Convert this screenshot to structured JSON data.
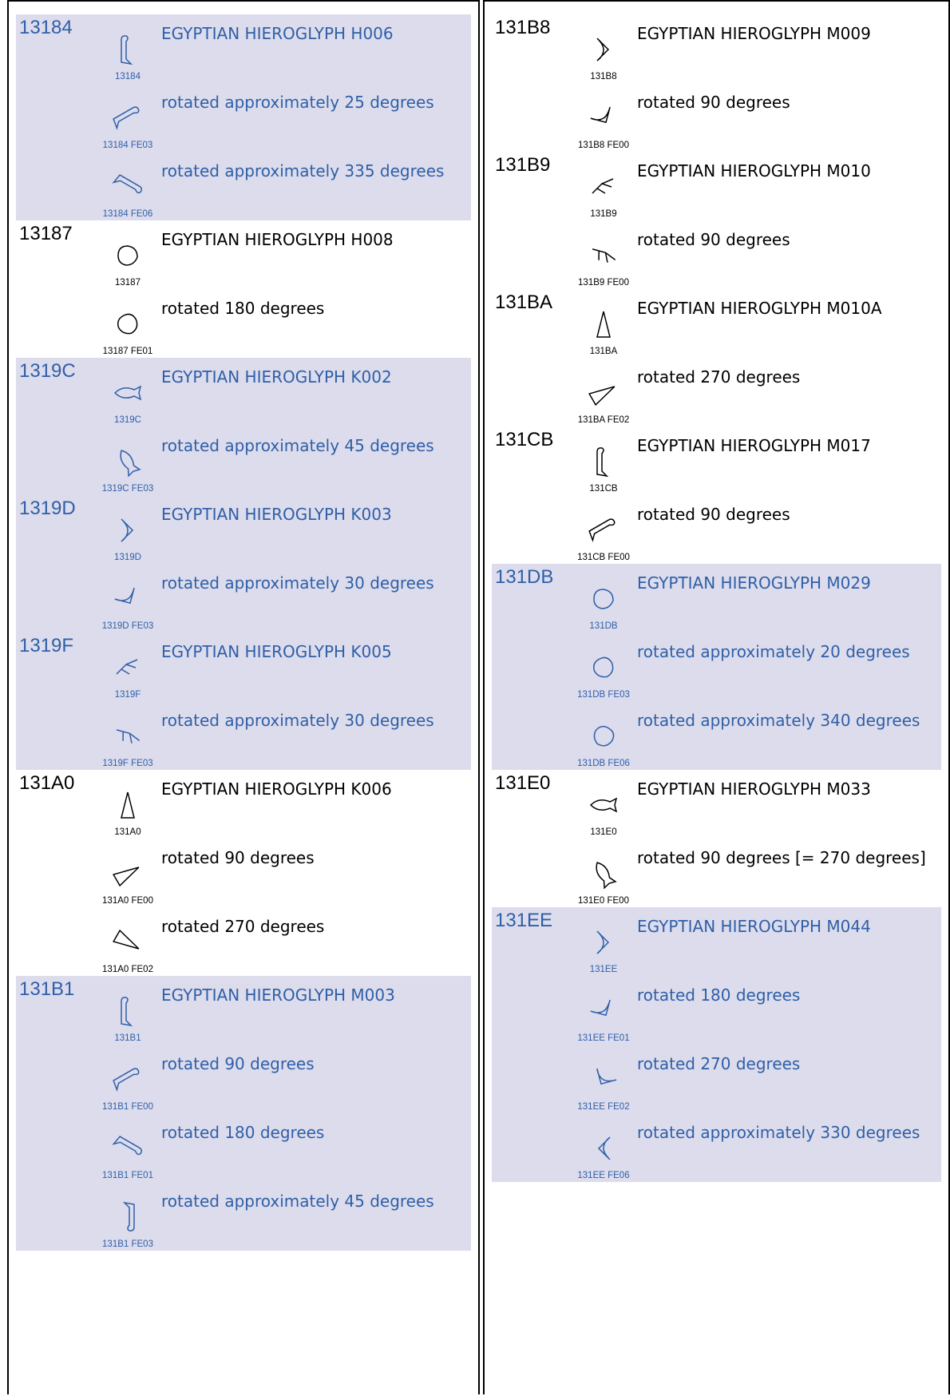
{
  "columns": [
    {
      "entries": [
        {
          "code": "13184",
          "highlight": true,
          "variants": [
            {
              "glyph_label": "13184",
              "description": "EGYPTIAN HIEROGLYPH H006"
            },
            {
              "glyph_label": "13184 FE03",
              "description": "rotated approximately 25 degrees"
            },
            {
              "glyph_label": "13184 FE06",
              "description": "rotated approximately 335 degrees"
            }
          ]
        },
        {
          "code": "13187",
          "highlight": false,
          "variants": [
            {
              "glyph_label": "13187",
              "description": "EGYPTIAN HIEROGLYPH H008"
            },
            {
              "glyph_label": "13187 FE01",
              "description": "rotated 180 degrees"
            }
          ]
        },
        {
          "code": "1319C",
          "highlight": true,
          "variants": [
            {
              "glyph_label": "1319C",
              "description": "EGYPTIAN HIEROGLYPH K002"
            },
            {
              "glyph_label": "1319C FE03",
              "description": "rotated approximately 45 degrees"
            }
          ]
        },
        {
          "code": "1319D",
          "highlight": true,
          "variants": [
            {
              "glyph_label": "1319D",
              "description": "EGYPTIAN HIEROGLYPH K003"
            },
            {
              "glyph_label": "1319D FE03",
              "description": "rotated approximately 30 degrees"
            }
          ]
        },
        {
          "code": "1319F",
          "highlight": true,
          "variants": [
            {
              "glyph_label": "1319F",
              "description": "EGYPTIAN HIEROGLYPH K005"
            },
            {
              "glyph_label": "1319F FE03",
              "description": "rotated approximately 30 degrees"
            }
          ]
        },
        {
          "code": "131A0",
          "highlight": false,
          "variants": [
            {
              "glyph_label": "131A0",
              "description": "EGYPTIAN HIEROGLYPH K006"
            },
            {
              "glyph_label": "131A0 FE00",
              "description": "rotated 90 degrees"
            },
            {
              "glyph_label": "131A0 FE02",
              "description": "rotated 270 degrees"
            }
          ]
        },
        {
          "code": "131B1",
          "highlight": true,
          "variants": [
            {
              "glyph_label": "131B1",
              "description": "EGYPTIAN HIEROGLYPH M003"
            },
            {
              "glyph_label": "131B1 FE00",
              "description": "rotated 90 degrees"
            },
            {
              "glyph_label": "131B1 FE01",
              "description": "rotated 180 degrees"
            },
            {
              "glyph_label": "131B1 FE03",
              "description": "rotated approximately 45 degrees"
            }
          ]
        }
      ]
    },
    {
      "entries": [
        {
          "code": "131B8",
          "highlight": false,
          "variants": [
            {
              "glyph_label": "131B8",
              "description": "EGYPTIAN HIEROGLYPH M009"
            },
            {
              "glyph_label": "131B8 FE00",
              "description": "rotated 90 degrees"
            }
          ]
        },
        {
          "code": "131B9",
          "highlight": false,
          "variants": [
            {
              "glyph_label": "131B9",
              "description": "EGYPTIAN HIEROGLYPH M010"
            },
            {
              "glyph_label": "131B9 FE00",
              "description": "rotated 90 degrees"
            }
          ]
        },
        {
          "code": "131BA",
          "highlight": false,
          "variants": [
            {
              "glyph_label": "131BA",
              "description": "EGYPTIAN HIEROGLYPH M010A"
            },
            {
              "glyph_label": "131BA FE02",
              "description": "rotated 270 degrees"
            }
          ]
        },
        {
          "code": "131CB",
          "highlight": false,
          "variants": [
            {
              "glyph_label": "131CB",
              "description": "EGYPTIAN HIEROGLYPH M017"
            },
            {
              "glyph_label": "131CB FE00",
              "description": "rotated 90 degrees"
            }
          ]
        },
        {
          "code": "131DB",
          "highlight": true,
          "variants": [
            {
              "glyph_label": "131DB",
              "description": "EGYPTIAN HIEROGLYPH M029"
            },
            {
              "glyph_label": "131DB FE03",
              "description": "rotated approximately 20 degrees"
            },
            {
              "glyph_label": "131DB FE06",
              "description": "rotated approximately 340 degrees"
            }
          ]
        },
        {
          "code": "131E0",
          "highlight": false,
          "variants": [
            {
              "glyph_label": "131E0",
              "description": "EGYPTIAN HIEROGLYPH M033"
            },
            {
              "glyph_label": "131E0 FE00",
              "description": "rotated 90 degrees [= 270 degrees]"
            }
          ]
        },
        {
          "code": "131EE",
          "highlight": true,
          "variants": [
            {
              "glyph_label": "131EE",
              "description": "EGYPTIAN HIEROGLYPH M044"
            },
            {
              "glyph_label": "131EE FE01",
              "description": "rotated 180 degrees"
            },
            {
              "glyph_label": "131EE FE02",
              "description": "rotated 270 degrees"
            },
            {
              "glyph_label": "131EE FE06",
              "description": "rotated approximately 330 degrees"
            }
          ]
        }
      ]
    }
  ]
}
